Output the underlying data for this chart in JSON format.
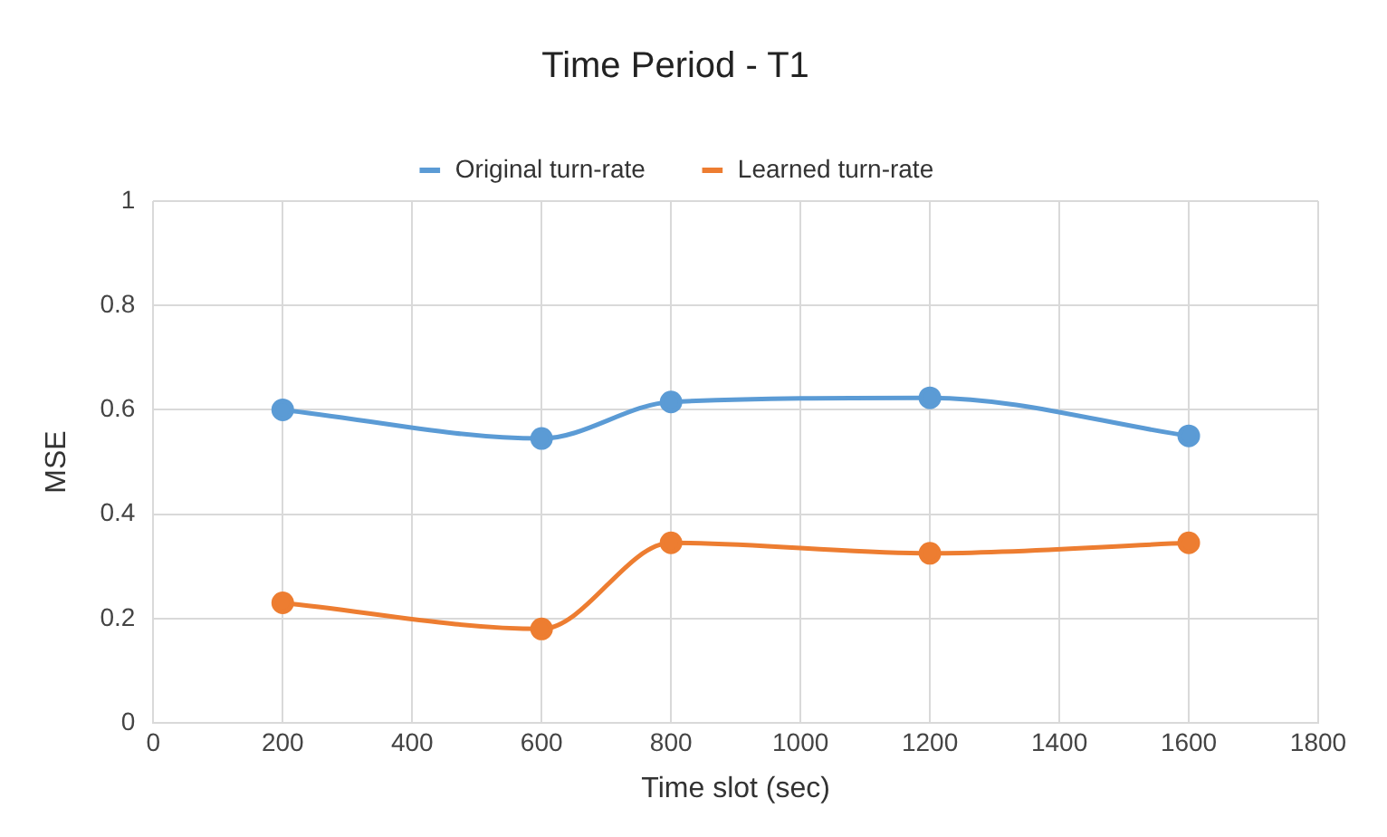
{
  "chart_data": {
    "type": "line",
    "title": "Time Period - T1",
    "xlabel": "Time slot (sec)",
    "ylabel": "MSE",
    "x": [
      200,
      600,
      800,
      1200,
      1600
    ],
    "series": [
      {
        "name": "Original turn-rate",
        "color": "#5b9bd5",
        "values": [
          0.6,
          0.545,
          0.615,
          0.623,
          0.55
        ]
      },
      {
        "name": "Learned turn-rate",
        "color": "#ed7d31",
        "values": [
          0.23,
          0.18,
          0.345,
          0.325,
          0.345
        ]
      }
    ],
    "xlim": [
      0,
      1800
    ],
    "xticks": [
      0,
      200,
      400,
      600,
      800,
      1000,
      1200,
      1400,
      1600,
      1800
    ],
    "ylim": [
      0,
      1
    ],
    "yticks": [
      0,
      0.2,
      0.4,
      0.6,
      0.8,
      1
    ],
    "grid": true,
    "legend": "top",
    "marker": "circle",
    "line_style": "solid"
  }
}
